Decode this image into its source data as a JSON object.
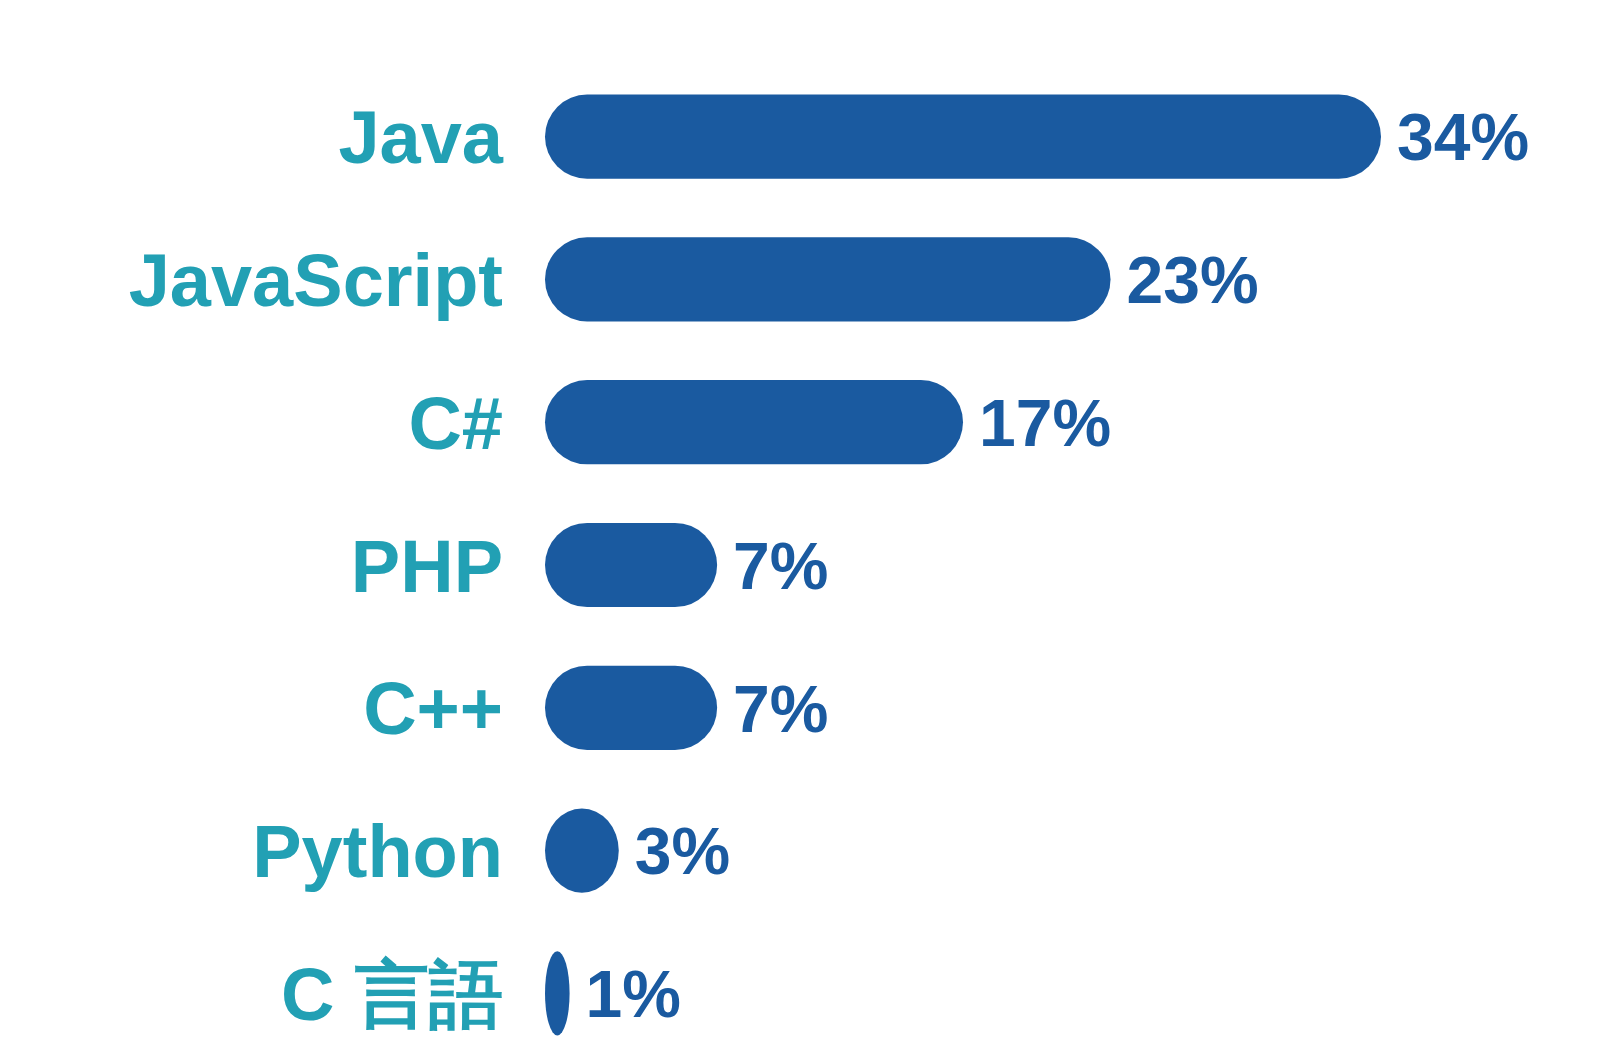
{
  "chart_data": {
    "type": "bar",
    "orientation": "horizontal",
    "relative": false,
    "categories": [
      "Java",
      "JavaScript",
      "C#",
      "PHP",
      "C++",
      "Python",
      "C 言語"
    ],
    "values": [
      34,
      23,
      17,
      7,
      7,
      3,
      1
    ],
    "value_labels": [
      "34%",
      "23%",
      "17%",
      "7%",
      "7%",
      "3%",
      "1%"
    ],
    "color": "#1a5aa0"
  }
}
